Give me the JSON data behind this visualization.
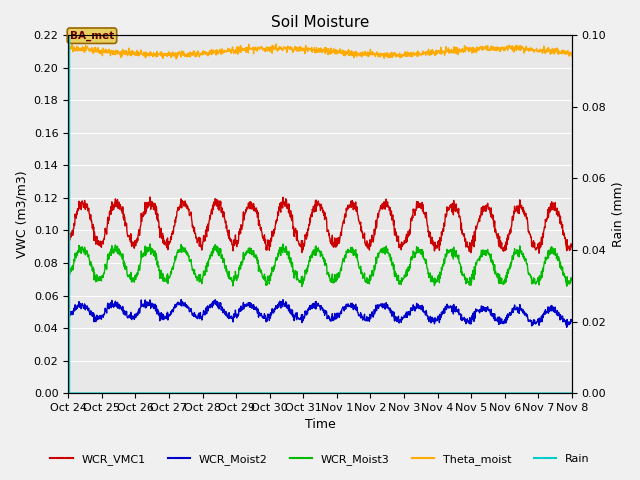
{
  "title": "Soil Moisture",
  "xlabel": "Time",
  "ylabel_left": "VWC (m3/m3)",
  "ylabel_right": "Rain (mm)",
  "ylim_left": [
    0.0,
    0.22
  ],
  "ylim_right": [
    0.0,
    0.1
  ],
  "yticks_left": [
    0.0,
    0.02,
    0.04,
    0.06,
    0.08,
    0.1,
    0.12,
    0.14,
    0.16,
    0.18,
    0.2,
    0.22
  ],
  "yticks_right": [
    0.0,
    0.02,
    0.04,
    0.06,
    0.08,
    0.1
  ],
  "colors": {
    "WCR_VMC1": "#cc0000",
    "WCR_Moist2": "#0000cc",
    "WCR_Moist3": "#00bb00",
    "Theta_moist": "#ffaa00",
    "Rain": "#00cccc"
  },
  "annotation_text": "BA_met",
  "background_color": "#e8e8e8",
  "fig_background": "#f0f0f0",
  "n_days": 15,
  "WCR_VMC1_base": 0.105,
  "WCR_VMC1_amp": 0.012,
  "WCR_Moist2_base": 0.05,
  "WCR_Moist2_amp": 0.004,
  "WCR_Moist3_base": 0.08,
  "WCR_Moist3_amp": 0.009,
  "Theta_moist_base": 0.21,
  "Theta_moist_amp": 0.002,
  "xtick_labels": [
    "Oct 24",
    "Oct 25",
    "Oct 26",
    "Oct 27",
    "Oct 28",
    "Oct 29",
    "Oct 30",
    "Oct 31",
    "Nov 1",
    "Nov 2",
    "Nov 3",
    "Nov 4",
    "Nov 5",
    "Nov 6",
    "Nov 7",
    "Nov 8"
  ],
  "line_width": 1.0,
  "title_fontsize": 11,
  "tick_fontsize": 8,
  "label_fontsize": 9
}
